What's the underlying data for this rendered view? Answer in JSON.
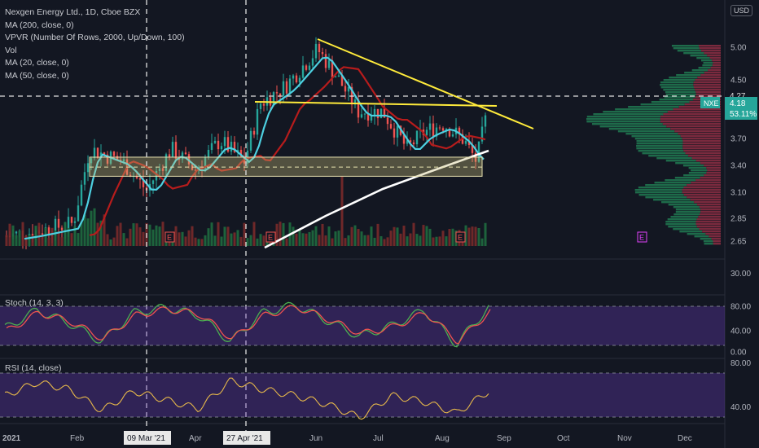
{
  "header": {
    "symbol_line": "Nexgen Energy Ltd., 1D, Cboe BZX",
    "currency": "USD",
    "indicators": [
      "VPVR (Number Of Rows, 2000, Up/Down, 100)",
      "Vol",
      "MA (200, close, 0)",
      "MA (20, close, 0)",
      "MA (50, close, 0)"
    ],
    "indicator_top": "MA (200, close, 0)"
  },
  "price_panel": {
    "y_ticks": [
      "5.00",
      "4.50",
      "4.27",
      "3.70",
      "3.40",
      "3.10",
      "2.85",
      "2.65"
    ],
    "y_tick_values": [
      5.0,
      4.5,
      4.27,
      3.7,
      3.4,
      3.1,
      2.85,
      2.65
    ],
    "last_price_badge": {
      "ticker": "NXE",
      "price": "4.18",
      "change": "53.11%"
    },
    "hline_label": "4.27",
    "earnings_marker": "E"
  },
  "volume_axis": {
    "tick": "30.00"
  },
  "stoch_panel": {
    "label": "Stoch (14, 3, 3)",
    "y_ticks": [
      "80.00",
      "40.00",
      "0.00"
    ]
  },
  "rsi_panel": {
    "label": "RSI (14, close)",
    "y_ticks": [
      "80.00",
      "40.00"
    ]
  },
  "x_axis": {
    "labels": [
      "2021",
      "Feb",
      "Apr",
      "Jun",
      "Jul",
      "Aug",
      "Sep",
      "Oct",
      "Nov",
      "Dec"
    ],
    "highlighted": [
      "09 Mar '21",
      "27 Apr '21"
    ]
  },
  "colors": {
    "background": "#131722",
    "up": "#26a69a",
    "down": "#ef5350",
    "ma20": "#4dd0e1",
    "ma50": "#b71c1c",
    "ma200": "#ffffff",
    "trendline": "#ffeb3b",
    "vpvr_up": "#1e6b4a",
    "vpvr_down": "#7a2a3e",
    "osc_band": "#4a2a6e"
  },
  "chart_data": [
    {
      "type": "candlestick",
      "title": "Nexgen Energy Ltd., 1D, Cboe BZX",
      "ylim": [
        2.6,
        5.2
      ],
      "x": [
        "2021",
        "Feb",
        "09 Mar '21",
        "Apr",
        "27 Apr '21",
        "Jun",
        "Jul",
        "Aug",
        "Sep"
      ],
      "close": [
        2.7,
        3.75,
        3.25,
        3.85,
        3.6,
        4.9,
        4.1,
        3.95,
        4.18
      ],
      "ma20": [
        2.72,
        3.55,
        3.5,
        3.75,
        3.72,
        4.75,
        4.1,
        4.05,
        4.1
      ],
      "ma50": [
        2.6,
        3.05,
        3.3,
        3.6,
        3.65,
        4.4,
        4.25,
        4.2,
        4.15
      ],
      "ma200": [
        null,
        null,
        null,
        null,
        2.62,
        3.0,
        3.3,
        3.5,
        3.6
      ],
      "horizontal_line": 4.27,
      "last_price": 4.18
    },
    {
      "type": "line",
      "title": "Stoch (14, 3, 3)",
      "ylim": [
        0,
        100
      ],
      "bands": [
        20,
        80
      ],
      "series": [
        {
          "name": "%K",
          "values": [
            45,
            80,
            55,
            20,
            75,
            85,
            70,
            20,
            75,
            90,
            60,
            30,
            50,
            80,
            15,
            85
          ]
        },
        {
          "name": "%D",
          "values": [
            40,
            75,
            58,
            25,
            70,
            82,
            72,
            25,
            70,
            86,
            62,
            35,
            48,
            75,
            20,
            78
          ]
        }
      ]
    },
    {
      "type": "line",
      "title": "RSI (14, close)",
      "ylim": [
        25,
        90
      ],
      "bands": [
        30,
        70
      ],
      "series": [
        {
          "name": "RSI",
          "values": [
            55,
            70,
            62,
            38,
            60,
            50,
            40,
            72,
            62,
            55,
            45,
            30,
            55,
            48,
            35,
            60
          ]
        }
      ]
    }
  ]
}
